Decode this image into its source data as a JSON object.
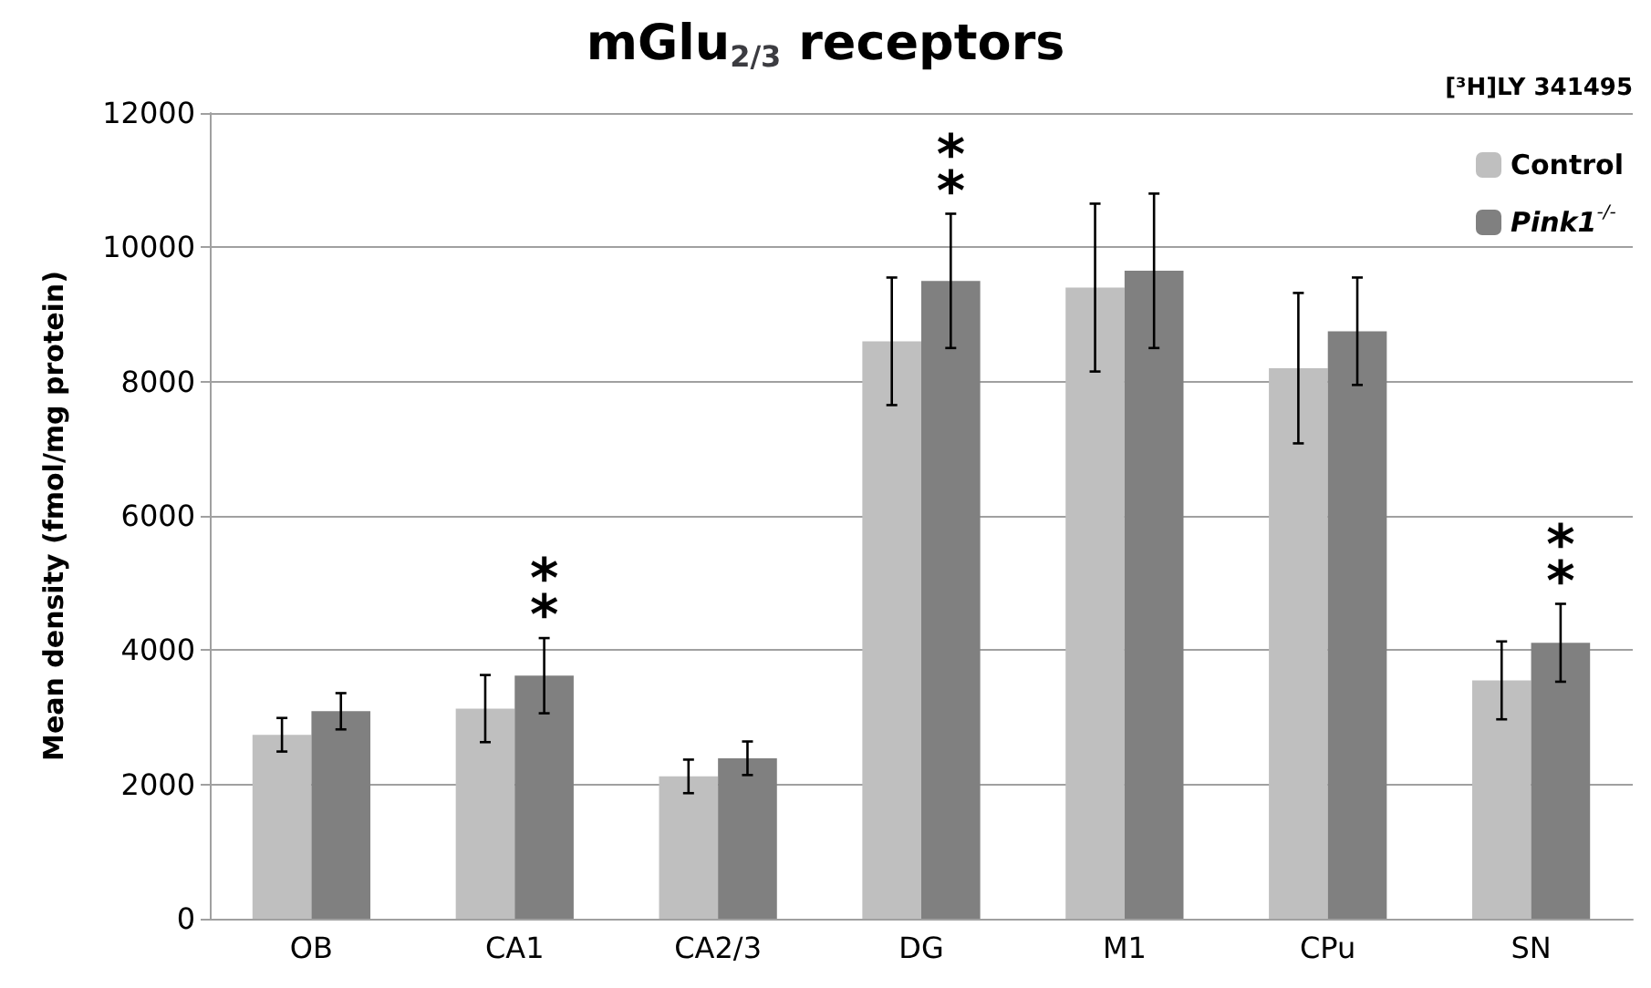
{
  "chart_data": {
    "type": "bar",
    "title": "mGlu$_{2/3}$ receptors",
    "ylabel": "Mean density (fmol/mg protein)",
    "categories": [
      "OB",
      "CA1",
      "CA2/3",
      "DG",
      "M1",
      "CPu",
      "SN"
    ],
    "series": [
      {
        "name": "Control",
        "color": "#bfbfbf",
        "values": [
          2740,
          3130,
          2120,
          8600,
          9400,
          8200,
          3550
        ],
        "errors": [
          250,
          500,
          250,
          950,
          1250,
          1120,
          580
        ]
      },
      {
        "name": "Pink1$^{-/-}$",
        "color": "#808080",
        "values": [
          3090,
          3620,
          2390,
          9500,
          9650,
          8750,
          4110
        ],
        "errors": [
          270,
          560,
          250,
          1000,
          1150,
          800,
          580
        ]
      }
    ],
    "ylim": [
      0,
      12000
    ],
    "yticks": [
      0,
      2000,
      4000,
      6000,
      8000,
      10000,
      12000
    ],
    "grid": "y",
    "legend": "top right",
    "annotations": [
      "[³H]LY 341495",
      {
        "text": "**",
        "x": "CA1",
        "y": 3620
      },
      {
        "text": "**",
        "x": "DG",
        "y": 9500
      },
      {
        "text": "**",
        "x": "SN",
        "y": 4110
      }
    ]
  }
}
